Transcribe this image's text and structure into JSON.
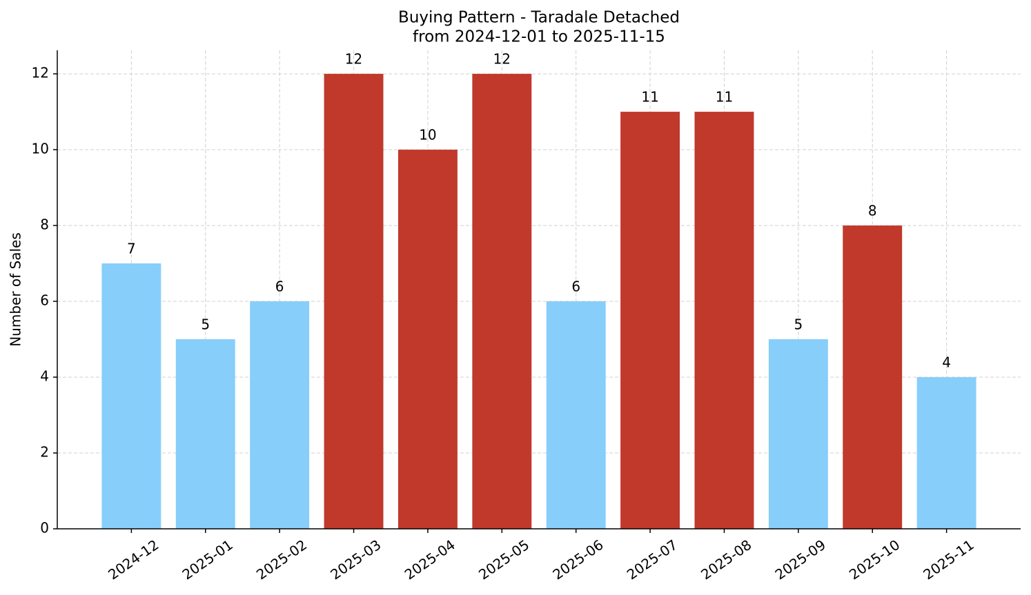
{
  "chart_data": {
    "type": "bar",
    "title": "Buying Pattern - Taradale Detached",
    "subtitle": "from 2024-12-01 to 2025-11-15",
    "y_label": "Number of Sales",
    "categories": [
      "2024-12",
      "2025-01",
      "2025-02",
      "2025-03",
      "2025-04",
      "2025-05",
      "2025-06",
      "2025-07",
      "2025-08",
      "2025-09",
      "2025-10",
      "2025-11"
    ],
    "values": [
      7,
      5,
      6,
      12,
      10,
      12,
      6,
      11,
      11,
      5,
      8,
      4
    ],
    "colors": [
      "#87cefa",
      "#87cefa",
      "#87cefa",
      "#c0392b",
      "#c0392b",
      "#c0392b",
      "#87cefa",
      "#c0392b",
      "#c0392b",
      "#87cefa",
      "#c0392b",
      "#87cefa"
    ],
    "ylim": [
      0,
      12.62
    ],
    "yticks": [
      0,
      2,
      4,
      6,
      8,
      10,
      12
    ],
    "grid": true
  }
}
